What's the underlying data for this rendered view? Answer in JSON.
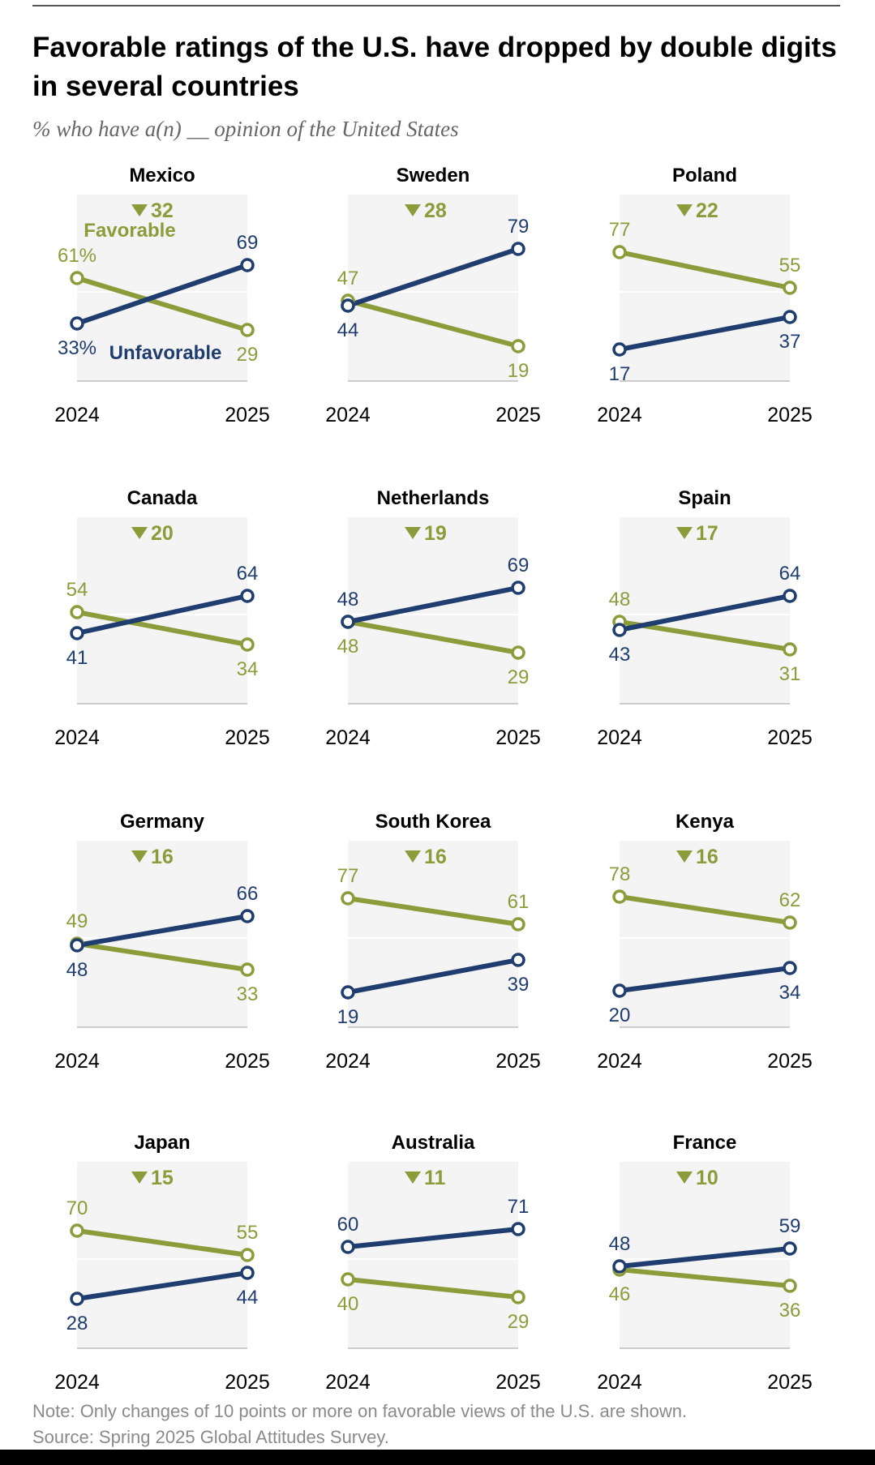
{
  "title": "Favorable ratings of the U.S. have dropped by double digits in several countries",
  "subtitle": "% who have a(n) __ opinion of the United States",
  "note": "Note: Only changes of 10 points or more on favorable views of the U.S. are shown.",
  "source": "Source: Spring 2025 Global Attitudes Survey.",
  "colors": {
    "favorable": "#8b9c3a",
    "unfavorable": "#1f3d6f",
    "panel_bg": "#f4f4f4",
    "text": "#000000"
  },
  "legend": {
    "favorable": "Favorable",
    "unfavorable": "Unfavorable"
  },
  "chart_data": [
    {
      "type": "line",
      "title": "Mexico",
      "change": "32",
      "x": [
        "2024",
        "2025"
      ],
      "series": [
        {
          "name": "Favorable",
          "values": [
            61,
            29
          ]
        },
        {
          "name": "Unfavorable",
          "values": [
            33,
            69
          ]
        }
      ]
    },
    {
      "type": "line",
      "title": "Sweden",
      "change": "28",
      "x": [
        "2024",
        "2025"
      ],
      "series": [
        {
          "name": "Favorable",
          "values": [
            47,
            19
          ]
        },
        {
          "name": "Unfavorable",
          "values": [
            44,
            79
          ]
        }
      ]
    },
    {
      "type": "line",
      "title": "Poland",
      "change": "22",
      "x": [
        "2024",
        "2025"
      ],
      "series": [
        {
          "name": "Favorable",
          "values": [
            77,
            55
          ]
        },
        {
          "name": "Unfavorable",
          "values": [
            17,
            37
          ]
        }
      ]
    },
    {
      "type": "line",
      "title": "Canada",
      "change": "20",
      "x": [
        "2024",
        "2025"
      ],
      "series": [
        {
          "name": "Favorable",
          "values": [
            54,
            34
          ]
        },
        {
          "name": "Unfavorable",
          "values": [
            41,
            64
          ]
        }
      ]
    },
    {
      "type": "line",
      "title": "Netherlands",
      "change": "19",
      "x": [
        "2024",
        "2025"
      ],
      "series": [
        {
          "name": "Favorable",
          "values": [
            48,
            29
          ]
        },
        {
          "name": "Unfavorable",
          "values": [
            48,
            69
          ]
        }
      ]
    },
    {
      "type": "line",
      "title": "Spain",
      "change": "17",
      "x": [
        "2024",
        "2025"
      ],
      "series": [
        {
          "name": "Favorable",
          "values": [
            48,
            31
          ]
        },
        {
          "name": "Unfavorable",
          "values": [
            43,
            64
          ]
        }
      ]
    },
    {
      "type": "line",
      "title": "Germany",
      "change": "16",
      "x": [
        "2024",
        "2025"
      ],
      "series": [
        {
          "name": "Favorable",
          "values": [
            49,
            33
          ]
        },
        {
          "name": "Unfavorable",
          "values": [
            48,
            66
          ]
        }
      ]
    },
    {
      "type": "line",
      "title": "South Korea",
      "change": "16",
      "x": [
        "2024",
        "2025"
      ],
      "series": [
        {
          "name": "Favorable",
          "values": [
            77,
            61
          ]
        },
        {
          "name": "Unfavorable",
          "values": [
            19,
            39
          ]
        }
      ]
    },
    {
      "type": "line",
      "title": "Kenya",
      "change": "16",
      "x": [
        "2024",
        "2025"
      ],
      "series": [
        {
          "name": "Favorable",
          "values": [
            78,
            62
          ]
        },
        {
          "name": "Unfavorable",
          "values": [
            20,
            34
          ]
        }
      ]
    },
    {
      "type": "line",
      "title": "Japan",
      "change": "15",
      "x": [
        "2024",
        "2025"
      ],
      "series": [
        {
          "name": "Favorable",
          "values": [
            70,
            55
          ]
        },
        {
          "name": "Unfavorable",
          "values": [
            28,
            44
          ]
        }
      ]
    },
    {
      "type": "line",
      "title": "Australia",
      "change": "11",
      "x": [
        "2024",
        "2025"
      ],
      "series": [
        {
          "name": "Favorable",
          "values": [
            40,
            29
          ]
        },
        {
          "name": "Unfavorable",
          "values": [
            60,
            71
          ]
        }
      ]
    },
    {
      "type": "line",
      "title": "France",
      "change": "10",
      "x": [
        "2024",
        "2025"
      ],
      "series": [
        {
          "name": "Favorable",
          "values": [
            46,
            36
          ]
        },
        {
          "name": "Unfavorable",
          "values": [
            48,
            59
          ]
        }
      ]
    }
  ]
}
